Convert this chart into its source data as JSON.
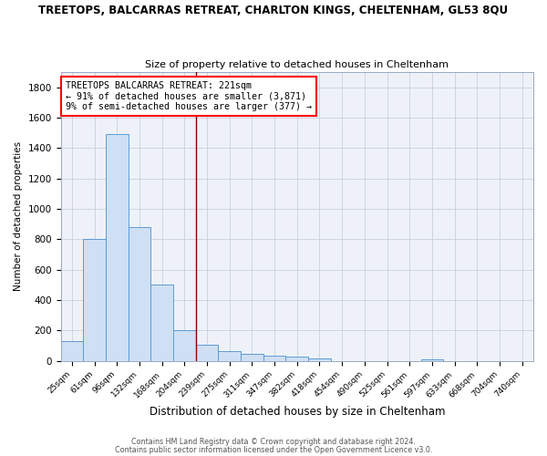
{
  "title_line1": "TREETOPS, BALCARRAS RETREAT, CHARLTON KINGS, CHELTENHAM, GL53 8QU",
  "title_line2": "Size of property relative to detached houses in Cheltenham",
  "xlabel": "Distribution of detached houses by size in Cheltenham",
  "ylabel": "Number of detached properties",
  "categories": [
    "25sqm",
    "61sqm",
    "96sqm",
    "132sqm",
    "168sqm",
    "204sqm",
    "239sqm",
    "275sqm",
    "311sqm",
    "347sqm",
    "382sqm",
    "418sqm",
    "454sqm",
    "490sqm",
    "525sqm",
    "561sqm",
    "597sqm",
    "633sqm",
    "668sqm",
    "704sqm",
    "740sqm"
  ],
  "values": [
    130,
    800,
    1490,
    880,
    500,
    205,
    105,
    65,
    47,
    35,
    27,
    18,
    0,
    0,
    0,
    0,
    13,
    0,
    0,
    0,
    0
  ],
  "bar_color": "#cfe0f5",
  "bar_edge_color": "#5b9bd5",
  "grid_color": "#c8d0de",
  "background_color": "#eef2f8",
  "plot_bg_color": "#eef2f8",
  "red_line_index": 6,
  "annotation_text": "TREETOPS BALCARRAS RETREAT: 221sqm\n← 91% of detached houses are smaller (3,871)\n9% of semi-detached houses are larger (377) →",
  "footnote_line1": "Contains HM Land Registry data © Crown copyright and database right 2024.",
  "footnote_line2": "Contains public sector information licensed under the Open Government Licence v3.0.",
  "ylim": [
    0,
    1900
  ],
  "yticks": [
    0,
    200,
    400,
    600,
    800,
    1000,
    1200,
    1400,
    1600,
    1800
  ]
}
